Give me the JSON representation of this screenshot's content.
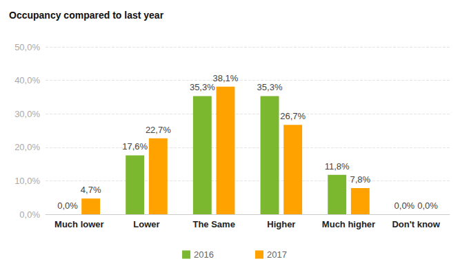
{
  "chart_data": {
    "type": "bar",
    "title": "Occupancy compared to last year",
    "categories": [
      "Much lower",
      "Lower",
      "The Same",
      "Higher",
      "Much higher",
      "Don't know"
    ],
    "series": [
      {
        "name": "2016",
        "color": "#7cb82f",
        "values": [
          0,
          17.6,
          35.3,
          35.3,
          11.8,
          0
        ],
        "value_labels": [
          "0,0%",
          "17,6%",
          "35,3%",
          "35,3%",
          "11,8%",
          "0,0%"
        ]
      },
      {
        "name": "2017",
        "color": "#ffa200",
        "values": [
          4.7,
          22.7,
          38.1,
          26.7,
          7.8,
          0
        ],
        "value_labels": [
          "4,7%",
          "22,7%",
          "38,1%",
          "26,7%",
          "7,8%",
          "0,0%"
        ]
      }
    ],
    "ylim": [
      0,
      50
    ],
    "yticks": [
      {
        "value": 0,
        "label": "0,0%"
      },
      {
        "value": 10,
        "label": "10,0%"
      },
      {
        "value": 20,
        "label": "20,0%"
      },
      {
        "value": 30,
        "label": "30,0%"
      },
      {
        "value": 40,
        "label": "40,0%"
      },
      {
        "value": 50,
        "label": "50,0%"
      }
    ],
    "grid": true,
    "legend": "bottom",
    "data_labels": true
  }
}
